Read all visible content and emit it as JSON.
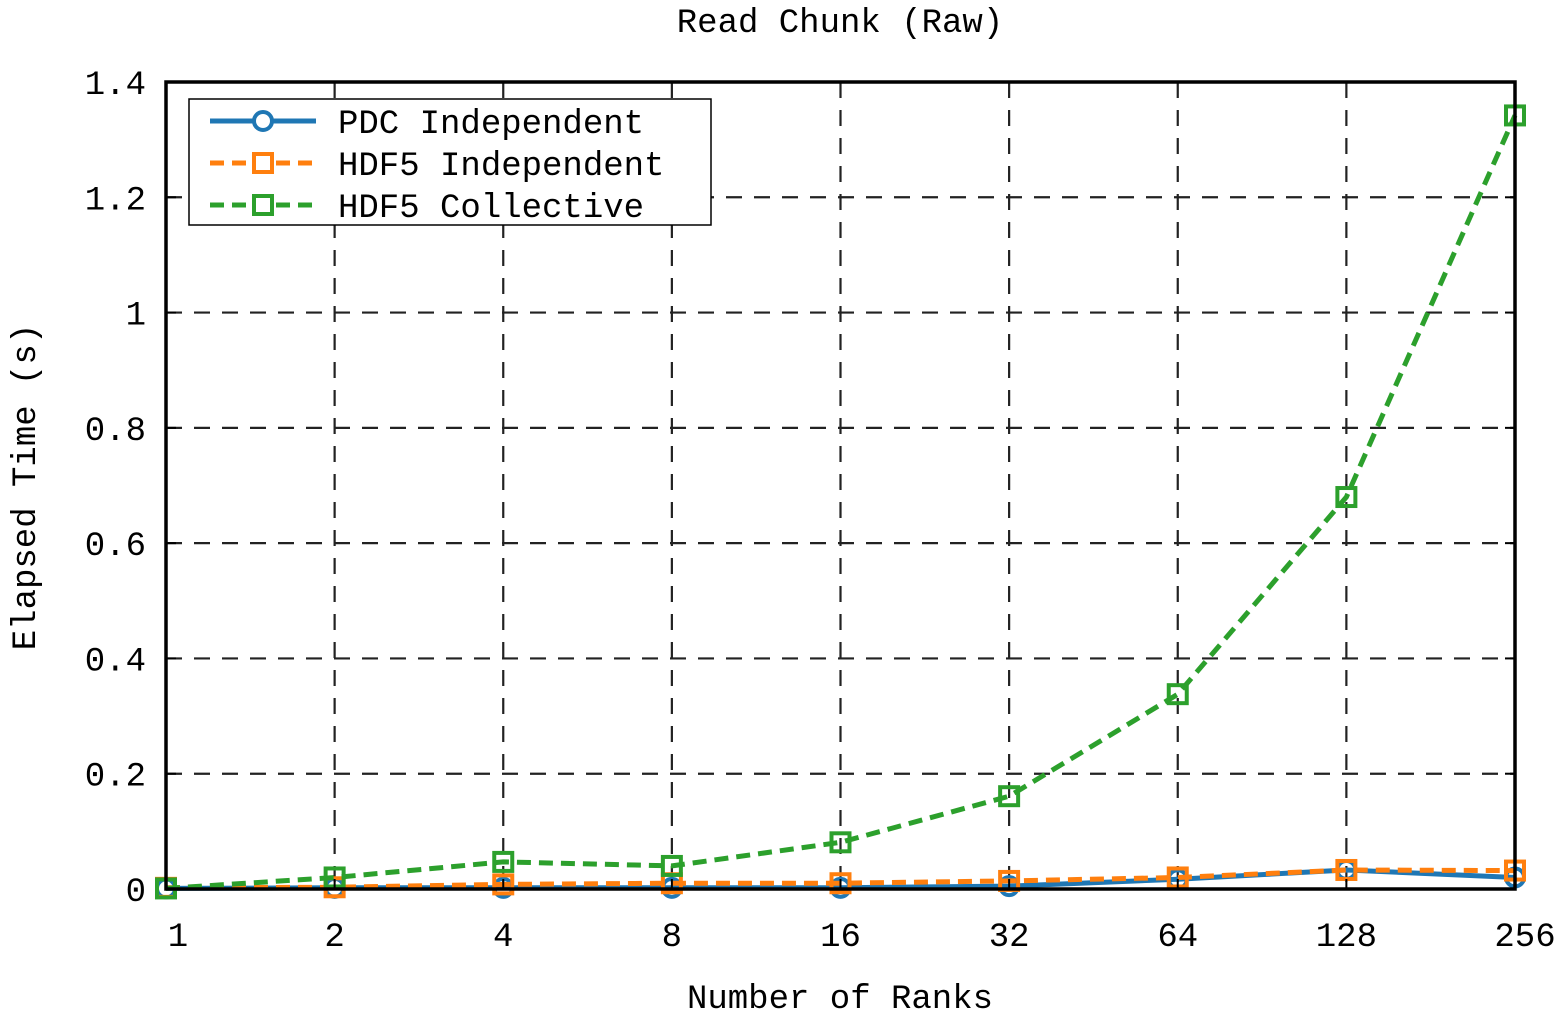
{
  "chart_data": {
    "type": "line",
    "title": "Read Chunk (Raw)",
    "xlabel": "Number of Ranks",
    "ylabel": "Elapsed Time (s)",
    "x_scale": "log2",
    "categories": [
      "1",
      "2",
      "4",
      "8",
      "16",
      "32",
      "64",
      "128",
      "256"
    ],
    "x": [
      1,
      2,
      4,
      8,
      16,
      32,
      64,
      128,
      256
    ],
    "ylim": [
      0,
      1.4
    ],
    "yticks": [
      "0",
      "0.2",
      "0.4",
      "0.6",
      "0.8",
      "1",
      "1.2",
      "1.4"
    ],
    "grid": true,
    "legend_position": "top-left",
    "series": [
      {
        "name": "PDC Independent",
        "color": "#1f77b4",
        "line": "solid",
        "marker": "circle",
        "values": [
          0.001,
          0.002,
          0.002,
          0.002,
          0.002,
          0.005,
          0.017,
          0.033,
          0.02
        ]
      },
      {
        "name": "HDF5 Independent",
        "color": "#ff7f0e",
        "line": "dashed",
        "marker": "square",
        "values": [
          0.002,
          0.003,
          0.008,
          0.01,
          0.01,
          0.014,
          0.02,
          0.033,
          0.032
        ]
      },
      {
        "name": "HDF5 Collective",
        "color": "#2ca02c",
        "line": "dashed",
        "marker": "square",
        "values": [
          0.001,
          0.02,
          0.047,
          0.04,
          0.081,
          0.161,
          0.338,
          0.68,
          1.342
        ]
      }
    ]
  }
}
